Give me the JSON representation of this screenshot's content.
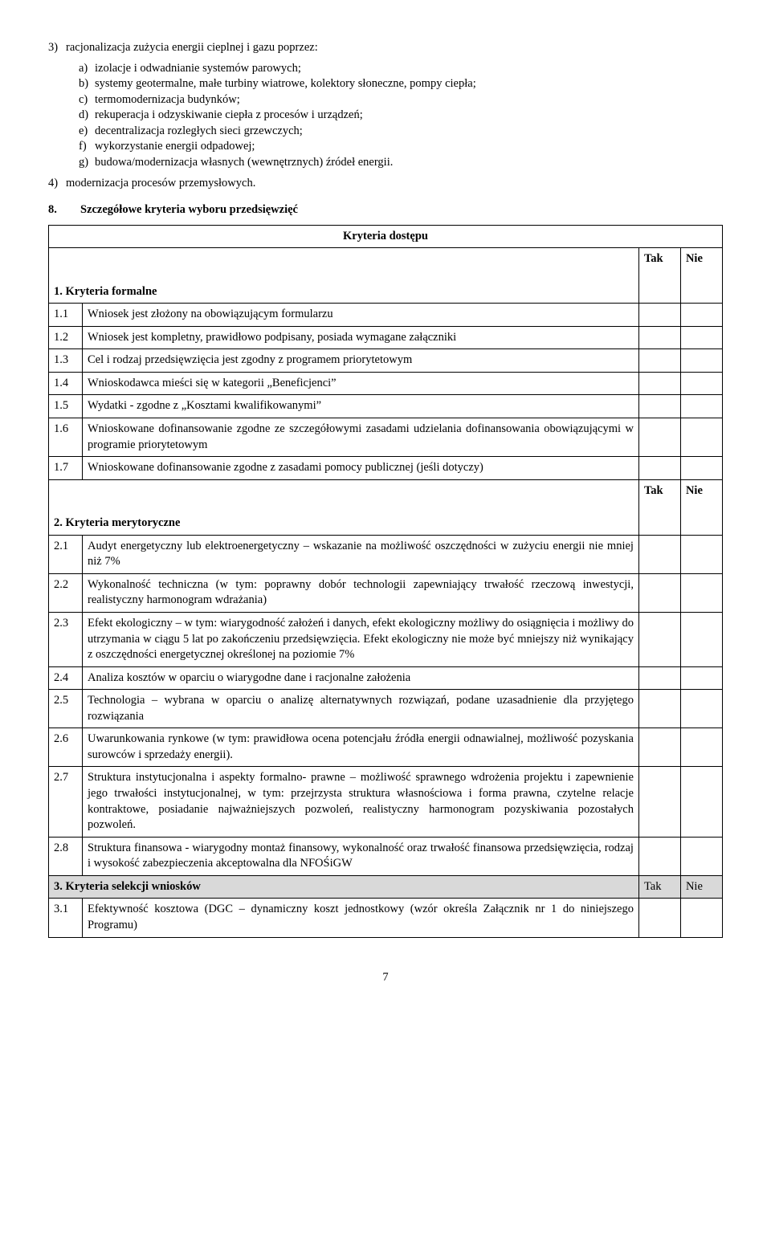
{
  "intro": {
    "item3": {
      "num": "3)",
      "text": "racjonalizacja zużycia energii cieplnej i gazu poprzez:"
    },
    "sub": {
      "a": {
        "l": "a)",
        "t": "izolacje i odwadnianie systemów parowych;"
      },
      "b": {
        "l": "b)",
        "t": "systemy geotermalne, małe turbiny wiatrowe, kolektory słoneczne, pompy ciepła;"
      },
      "c": {
        "l": "c)",
        "t": "termomodernizacja budynków;"
      },
      "d": {
        "l": "d)",
        "t": "rekuperacja i odzyskiwanie ciepła z procesów i urządzeń;"
      },
      "e": {
        "l": "e)",
        "t": "decentralizacja rozległych sieci grzewczych;"
      },
      "f": {
        "l": "f)",
        "t": "wykorzystanie energii odpadowej;"
      },
      "g": {
        "l": "g)",
        "t": "budowa/modernizacja własnych (wewnętrznych) źródeł energii."
      }
    },
    "item4": {
      "num": "4)",
      "text": "modernizacja procesów przemysłowych."
    }
  },
  "sec8": {
    "num": "8.",
    "title": "Szczegółowe kryteria wyboru przedsięwzięć"
  },
  "table": {
    "hdr": {
      "kryteria_dostepu": "Kryteria dostępu",
      "tak": "Tak",
      "nie": "Nie"
    },
    "grp1": "1. Kryteria formalne",
    "r1": {
      "n": "1.1",
      "t": "Wniosek jest złożony na obowiązującym formularzu"
    },
    "r2": {
      "n": "1.2",
      "t": "Wniosek jest kompletny, prawidłowo podpisany, posiada wymagane załączniki"
    },
    "r3": {
      "n": "1.3",
      "t": "Cel i rodzaj przedsięwzięcia jest zgodny z programem priorytetowym"
    },
    "r4": {
      "n": "1.4",
      "t": "Wnioskodawca mieści się w kategorii „Beneficjenci”"
    },
    "r5": {
      "n": "1.5",
      "t": "Wydatki - zgodne z „Kosztami kwalifikowanymi”"
    },
    "r6": {
      "n": "1.6",
      "t": "Wnioskowane dofinansowanie zgodne ze szczegółowymi zasadami udzielania dofinansowania obowiązującymi w programie priorytetowym"
    },
    "r7": {
      "n": "1.7",
      "t": "Wnioskowane dofinansowanie zgodne z zasadami pomocy publicznej (jeśli dotyczy)"
    },
    "grp2": "2. Kryteria merytoryczne",
    "m1": {
      "n": "2.1",
      "t": "Audyt energetyczny lub elektroenergetyczny – wskazanie na możliwość oszczędności w zużyciu energii nie mniej niż 7%"
    },
    "m2": {
      "n": "2.2",
      "t": "Wykonalność techniczna (w tym: poprawny dobór technologii zapewniający trwałość rzeczową inwestycji, realistyczny harmonogram wdrażania)"
    },
    "m3": {
      "n": "2.3",
      "t": "Efekt ekologiczny – w tym: wiarygodność założeń i danych, efekt ekologiczny możliwy do osiągnięcia i możliwy do utrzymania w ciągu 5 lat po zakończeniu przedsięwzięcia. Efekt ekologiczny nie może być mniejszy niż wynikający z oszczędności energetycznej określonej na poziomie 7%"
    },
    "m4": {
      "n": "2.4",
      "t": "Analiza kosztów w oparciu o wiarygodne dane i racjonalne założenia"
    },
    "m5": {
      "n": "2.5",
      "t": "Technologia – wybrana w oparciu o analizę alternatywnych rozwiązań, podane uzasadnienie dla przyjętego rozwiązania"
    },
    "m6": {
      "n": "2.6",
      "t": "Uwarunkowania rynkowe (w tym: prawidłowa ocena potencjału źródła energii odnawialnej, możliwość pozyskania surowców i sprzedaży energii)."
    },
    "m7": {
      "n": "2.7",
      "t": "Struktura instytucjonalna i aspekty formalno- prawne – możliwość sprawnego wdrożenia projektu i zapewnienie jego trwałości instytucjonalnej, w tym: przejrzysta struktura własnościowa i forma prawna, czytelne relacje kontraktowe, posiadanie najważniejszych pozwoleń, realistyczny harmonogram pozyskiwania pozostałych pozwoleń."
    },
    "m8": {
      "n": "2.8",
      "t": "Struktura finansowa - wiarygodny montaż finansowy, wykonalność oraz trwałość finansowa przedsięwzięcia, rodzaj i wysokość zabezpieczenia akceptowalna dla NFOŚiGW"
    },
    "grp3": "3. Kryteria selekcji wniosków",
    "s1": {
      "n": "3.1",
      "t": "Efektywność kosztowa (DGC – dynamiczny koszt jednostkowy (wzór określa Załącznik nr 1 do niniejszego Programu)"
    }
  },
  "page": "7"
}
